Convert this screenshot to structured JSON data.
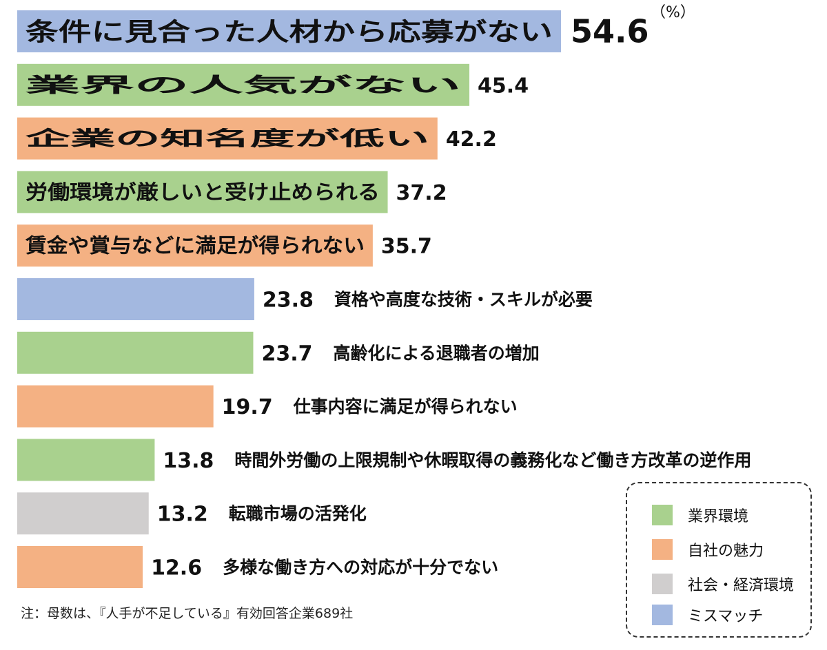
{
  "unit_label": "（%）",
  "note": "注：母数は、『人手が不足している』有効回答企業689社",
  "colors": {
    "industry": "#a9d18e",
    "company": "#f4b183",
    "social": "#d0cece",
    "mismatch": "#a3b8e0"
  },
  "legend": [
    {
      "label": "業界環境",
      "color_key": "industry"
    },
    {
      "label": "自社の魅力",
      "color_key": "company"
    },
    {
      "label": "社会・経済環境",
      "color_key": "social"
    },
    {
      "label": "ミスマッチ",
      "color_key": "mismatch"
    }
  ],
  "chart_data": {
    "type": "bar",
    "orientation": "horizontal",
    "categories": [
      "条件に見合った人材から応募がない",
      "業界の人気がない",
      "企業の知名度が低い",
      "労働環境が厳しいと受け止められる",
      "賃金や賞与などに満足が得られない",
      "資格や高度な技術・スキルが必要",
      "高齢化による退職者の増加",
      "仕事内容に満足が得られない",
      "時間外労働の上限規制や休暇取得の義務化など働き方改革の逆作用",
      "転職市場の活発化",
      "多様な働き方への対応が十分でない"
    ],
    "values": [
      54.6,
      45.4,
      42.2,
      37.2,
      35.7,
      23.8,
      23.7,
      19.7,
      13.8,
      13.2,
      12.6
    ],
    "value_labels": [
      "54.6",
      "45.4",
      "42.2",
      "37.2",
      "35.7",
      "23.8",
      "23.7",
      "19.7",
      "13.8",
      "13.2",
      "12.6"
    ],
    "groups": [
      "mismatch",
      "industry",
      "company",
      "industry",
      "company",
      "mismatch",
      "industry",
      "company",
      "industry",
      "social",
      "company"
    ],
    "label_inside": [
      true,
      true,
      true,
      true,
      true,
      false,
      false,
      false,
      false,
      false,
      false
    ],
    "xlim": [
      0,
      54.6
    ],
    "legend_placement": "bottom-right",
    "grid": false
  }
}
